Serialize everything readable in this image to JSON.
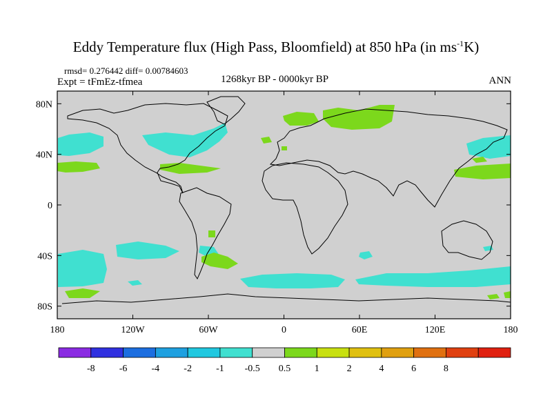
{
  "title": {
    "text": "Eddy Temperature flux (High Pass, Bloomfield) at 850 hPa (in ms",
    "units_sup": "-1",
    "units_end": "K)"
  },
  "stats": "rmsd= 0.276442 diff= 0.00784603",
  "expt": "Expt = tFmEz-tfmea",
  "period": "1268kyr BP - 0000kyr BP",
  "season": "ANN",
  "map": {
    "land_color": "#d0d0d0",
    "lat_labels": [
      {
        "text": "80N",
        "lat": 80
      },
      {
        "text": "40N",
        "lat": 40
      },
      {
        "text": "0",
        "lat": 0
      },
      {
        "text": "40S",
        "lat": -40
      },
      {
        "text": "80S",
        "lat": -80
      }
    ],
    "lon_labels": [
      {
        "text": "180",
        "lon": -180
      },
      {
        "text": "120W",
        "lon": -120
      },
      {
        "text": "60W",
        "lon": -60
      },
      {
        "text": "0",
        "lon": 0
      },
      {
        "text": "60E",
        "lon": 60
      },
      {
        "text": "120E",
        "lon": 120
      },
      {
        "text": "180",
        "lon": 180
      }
    ]
  },
  "colorbar": {
    "colors": [
      "#8a2be2",
      "#3030e0",
      "#1c6ee0",
      "#1ea0e0",
      "#20c8e0",
      "#40e0d0",
      "#d0d0d0",
      "#7cd81c",
      "#c8e010",
      "#e0c010",
      "#e0a010",
      "#e07010",
      "#e04010",
      "#e02010"
    ],
    "labels": [
      "-8",
      "-6",
      "-4",
      "-2",
      "-1",
      "-0.5",
      "0.5",
      "1",
      "2",
      "4",
      "6",
      "8"
    ]
  }
}
